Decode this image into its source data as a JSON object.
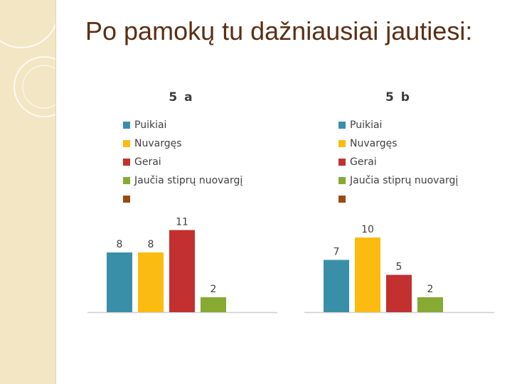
{
  "slide": {
    "title": "Po pamokų tu dažniausiai jautiesi:"
  },
  "chart_data": [
    {
      "type": "bar",
      "title": "5 a",
      "categories": [
        "Puikiai",
        "Nuvargęs",
        "Gerai",
        "Jaučia stiprų nuovargį",
        ""
      ],
      "values": [
        8,
        8,
        11,
        2,
        null
      ],
      "colors": [
        "#3a8fa8",
        "#fbbb10",
        "#c2302f",
        "#86aa32",
        "#9a4a15"
      ],
      "ylim": [
        0,
        12
      ],
      "legend": "top-left",
      "grid": false
    },
    {
      "type": "bar",
      "title": "5 b",
      "categories": [
        "Puikiai",
        "Nuvargęs",
        "Gerai",
        "Jaučia stiprų nuovargį",
        ""
      ],
      "values": [
        7,
        10,
        5,
        2,
        null
      ],
      "colors": [
        "#3a8fa8",
        "#fbbb10",
        "#c2302f",
        "#86aa32",
        "#9a4a15"
      ],
      "ylim": [
        0,
        12
      ],
      "legend": "top-left",
      "grid": false
    }
  ]
}
